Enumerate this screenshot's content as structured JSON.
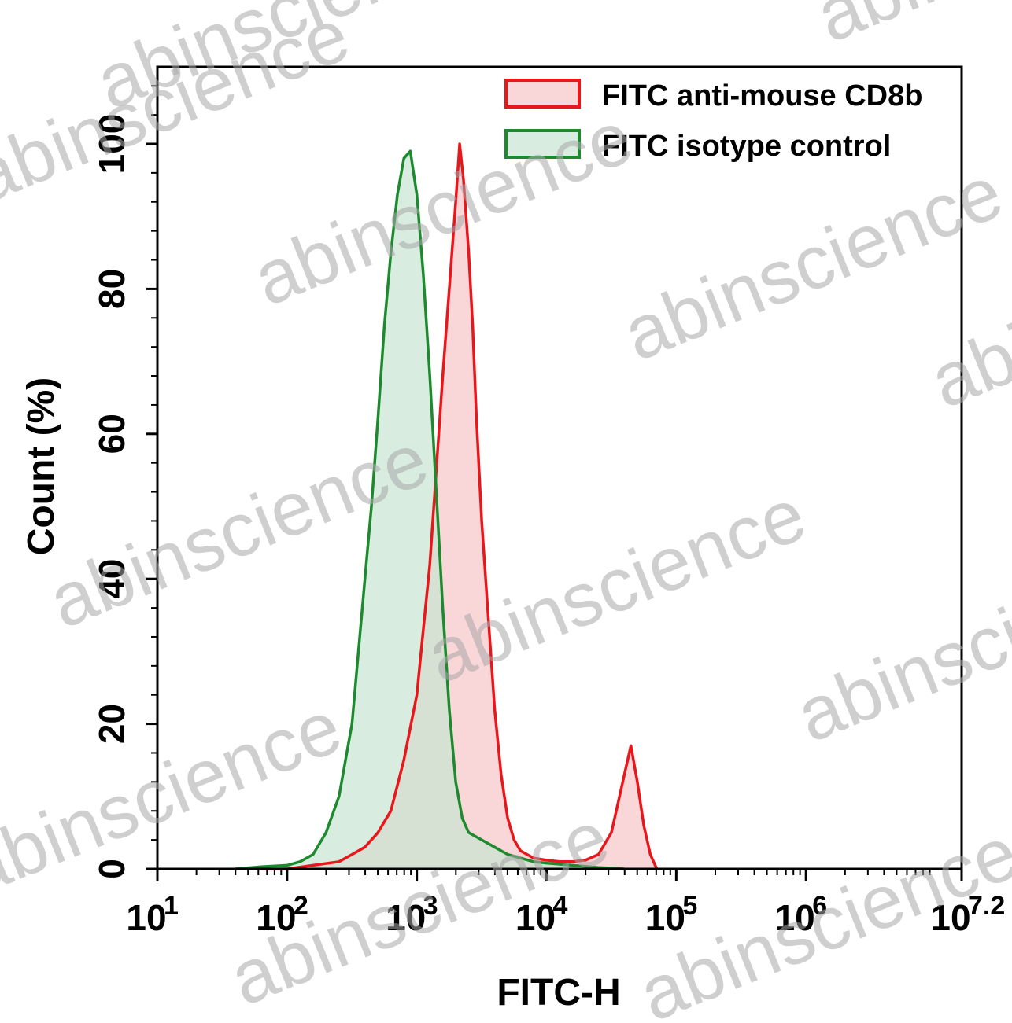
{
  "chart_data": {
    "type": "area",
    "title": "",
    "xlabel": "FITC-H",
    "ylabel": "Count (%)",
    "x_scale": "log10",
    "xlim_exponent": [
      1,
      7.2
    ],
    "ylim": [
      0,
      100
    ],
    "x_ticks": [
      {
        "base": "10",
        "exp": "1"
      },
      {
        "base": "10",
        "exp": "2"
      },
      {
        "base": "10",
        "exp": "3"
      },
      {
        "base": "10",
        "exp": "4"
      },
      {
        "base": "10",
        "exp": "5"
      },
      {
        "base": "10",
        "exp": "6"
      },
      {
        "base": "10",
        "exp": "7.2"
      }
    ],
    "y_ticks": [
      "0",
      "20",
      "40",
      "60",
      "80",
      "100"
    ],
    "legend_position": "top-right",
    "series": [
      {
        "name": "FITC anti-mouse CD8b",
        "color": "#e8171c",
        "fill": "#f6c5c7",
        "points": [
          [
            1.8,
            0
          ],
          [
            2.0,
            0
          ],
          [
            2.2,
            0.5
          ],
          [
            2.4,
            1
          ],
          [
            2.5,
            2
          ],
          [
            2.6,
            3
          ],
          [
            2.7,
            5
          ],
          [
            2.8,
            8
          ],
          [
            2.9,
            15
          ],
          [
            3.0,
            24
          ],
          [
            3.05,
            33
          ],
          [
            3.1,
            42
          ],
          [
            3.15,
            55
          ],
          [
            3.2,
            68
          ],
          [
            3.25,
            80
          ],
          [
            3.3,
            92
          ],
          [
            3.33,
            100
          ],
          [
            3.36,
            95
          ],
          [
            3.4,
            85
          ],
          [
            3.43,
            75
          ],
          [
            3.46,
            62
          ],
          [
            3.5,
            48
          ],
          [
            3.55,
            35
          ],
          [
            3.6,
            22
          ],
          [
            3.65,
            13
          ],
          [
            3.7,
            7
          ],
          [
            3.75,
            4
          ],
          [
            3.8,
            2.5
          ],
          [
            3.9,
            1.5
          ],
          [
            4.0,
            1.2
          ],
          [
            4.1,
            1
          ],
          [
            4.2,
            1
          ],
          [
            4.3,
            1.2
          ],
          [
            4.4,
            2
          ],
          [
            4.5,
            5
          ],
          [
            4.55,
            9
          ],
          [
            4.6,
            13
          ],
          [
            4.65,
            17
          ],
          [
            4.7,
            12
          ],
          [
            4.75,
            6
          ],
          [
            4.8,
            2
          ],
          [
            4.85,
            0
          ]
        ]
      },
      {
        "name": "FITC isotype control",
        "color": "#1e8a2f",
        "fill": "#c8e6d2",
        "points": [
          [
            1.6,
            0
          ],
          [
            1.8,
            0.3
          ],
          [
            2.0,
            0.5
          ],
          [
            2.1,
            1
          ],
          [
            2.2,
            2
          ],
          [
            2.3,
            5
          ],
          [
            2.4,
            10
          ],
          [
            2.5,
            20
          ],
          [
            2.55,
            30
          ],
          [
            2.6,
            40
          ],
          [
            2.65,
            50
          ],
          [
            2.7,
            62
          ],
          [
            2.75,
            75
          ],
          [
            2.8,
            85
          ],
          [
            2.85,
            93
          ],
          [
            2.9,
            98
          ],
          [
            2.95,
            99
          ],
          [
            3.0,
            93
          ],
          [
            3.05,
            82
          ],
          [
            3.1,
            68
          ],
          [
            3.15,
            52
          ],
          [
            3.2,
            36
          ],
          [
            3.25,
            22
          ],
          [
            3.3,
            12
          ],
          [
            3.35,
            7
          ],
          [
            3.4,
            5
          ],
          [
            3.5,
            4
          ],
          [
            3.6,
            3
          ],
          [
            3.7,
            2
          ],
          [
            3.8,
            1.5
          ],
          [
            3.9,
            1
          ],
          [
            4.0,
            0.8
          ],
          [
            4.2,
            0.5
          ],
          [
            4.4,
            0.2
          ],
          [
            4.6,
            0
          ]
        ]
      }
    ]
  },
  "watermark": {
    "text": "abinscience",
    "color": "#a8a8a8"
  }
}
